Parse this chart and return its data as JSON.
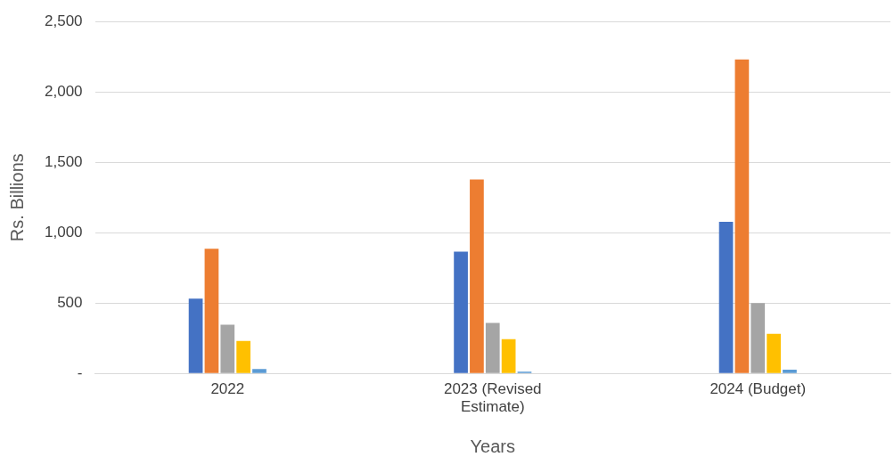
{
  "chart_data": {
    "type": "bar",
    "xlabel": "Years",
    "ylabel": "Rs. Billions",
    "categories": [
      "2022",
      "2023 (Revised Estimate)",
      "2024 (Budget)"
    ],
    "series": [
      {
        "color": "#4472c4",
        "values": [
          532,
          865,
          1077
        ]
      },
      {
        "color": "#ed7d31",
        "values": [
          885,
          1378,
          2231
        ]
      },
      {
        "color": "#a5a5a5",
        "values": [
          346,
          359,
          500
        ]
      },
      {
        "color": "#ffc000",
        "values": [
          231,
          244,
          282
        ]
      },
      {
        "color": "#5b9bd5",
        "values": [
          32,
          13,
          26
        ]
      }
    ],
    "ylim": [
      0,
      2500
    ],
    "yticks": [
      {
        "value": 0,
        "label": "-"
      },
      500,
      {
        "value": 1000,
        "label": "1,000"
      },
      {
        "value": 1500,
        "label": "1,500"
      },
      {
        "value": 2000,
        "label": "2,000"
      },
      {
        "value": 2500,
        "label": "2,500"
      }
    ],
    "grid": "y",
    "legend": false
  }
}
